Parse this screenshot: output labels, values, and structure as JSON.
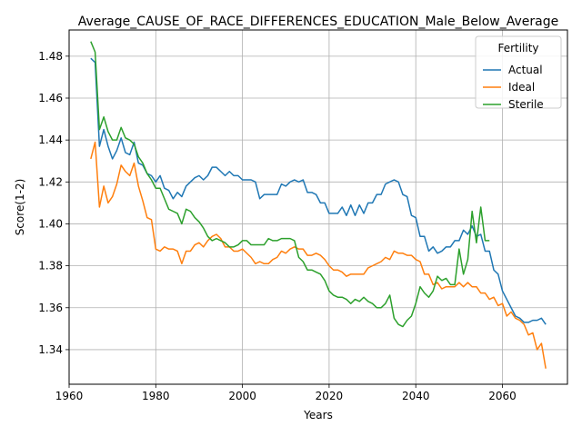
{
  "chart_data": {
    "type": "line",
    "title": "Average_CAUSE_OF_RACE_DIFFERENCES_EDUCATION_Male_Below_Average",
    "xlabel": "Years",
    "ylabel": "Score(1-2)",
    "xlim": [
      1960,
      2075
    ],
    "ylim": [
      1.3235,
      1.4925
    ],
    "xticks": [
      1960,
      1980,
      2000,
      2020,
      2040,
      2060
    ],
    "yticks": [
      1.34,
      1.36,
      1.38,
      1.4,
      1.42,
      1.44,
      1.46,
      1.48
    ],
    "ytick_labels": [
      "1.34",
      "1.36",
      "1.38",
      "1.40",
      "1.42",
      "1.44",
      "1.46",
      "1.48"
    ],
    "grid": true,
    "legend": {
      "title": "Fertility",
      "placement": "top-right"
    },
    "series": [
      {
        "name": "Actual",
        "color": "#1f77b4",
        "x": [
          1965,
          1966,
          1967,
          1968,
          1969,
          1970,
          1971,
          1972,
          1973,
          1974,
          1975,
          1976,
          1977,
          1978,
          1979,
          1980,
          1981,
          1982,
          1983,
          1984,
          1985,
          1986,
          1987,
          1988,
          1989,
          1990,
          1991,
          1992,
          1993,
          1994,
          1995,
          1996,
          1997,
          1998,
          1999,
          2000,
          2001,
          2002,
          2003,
          2004,
          2005,
          2006,
          2007,
          2008,
          2009,
          2010,
          2011,
          2012,
          2013,
          2014,
          2015,
          2016,
          2017,
          2018,
          2019,
          2020,
          2021,
          2022,
          2023,
          2024,
          2025,
          2026,
          2027,
          2028,
          2029,
          2030,
          2031,
          2032,
          2033,
          2034,
          2035,
          2036,
          2037,
          2038,
          2039,
          2040,
          2041,
          2042,
          2043,
          2044,
          2045,
          2046,
          2047,
          2048,
          2049,
          2050,
          2051,
          2052,
          2053,
          2054,
          2055,
          2056,
          2057,
          2058,
          2059,
          2060,
          2061,
          2062,
          2063,
          2064,
          2065,
          2066,
          2067,
          2068,
          2069,
          2070
        ],
        "y": [
          1.479,
          1.477,
          1.437,
          1.445,
          1.437,
          1.431,
          1.435,
          1.441,
          1.434,
          1.433,
          1.439,
          1.429,
          1.428,
          1.424,
          1.423,
          1.42,
          1.423,
          1.417,
          1.416,
          1.412,
          1.415,
          1.413,
          1.418,
          1.42,
          1.422,
          1.423,
          1.421,
          1.423,
          1.427,
          1.427,
          1.425,
          1.423,
          1.425,
          1.423,
          1.423,
          1.421,
          1.421,
          1.421,
          1.42,
          1.412,
          1.414,
          1.414,
          1.414,
          1.414,
          1.419,
          1.418,
          1.42,
          1.421,
          1.42,
          1.421,
          1.415,
          1.415,
          1.414,
          1.41,
          1.41,
          1.405,
          1.405,
          1.405,
          1.408,
          1.404,
          1.409,
          1.404,
          1.409,
          1.405,
          1.41,
          1.41,
          1.414,
          1.414,
          1.419,
          1.42,
          1.421,
          1.42,
          1.414,
          1.413,
          1.404,
          1.403,
          1.394,
          1.394,
          1.387,
          1.389,
          1.386,
          1.387,
          1.389,
          1.389,
          1.392,
          1.392,
          1.397,
          1.395,
          1.399,
          1.394,
          1.395,
          1.387,
          1.387,
          1.378,
          1.376,
          1.368,
          1.364,
          1.36,
          1.356,
          1.355,
          1.353,
          1.353,
          1.354,
          1.354,
          1.355,
          1.352
        ]
      },
      {
        "name": "Ideal",
        "color": "#ff7f0e",
        "x": [
          1965,
          1966,
          1967,
          1968,
          1969,
          1970,
          1971,
          1972,
          1973,
          1974,
          1975,
          1976,
          1977,
          1978,
          1979,
          1980,
          1981,
          1982,
          1983,
          1984,
          1985,
          1986,
          1987,
          1988,
          1989,
          1990,
          1991,
          1992,
          1993,
          1994,
          1995,
          1996,
          1997,
          1998,
          1999,
          2000,
          2001,
          2002,
          2003,
          2004,
          2005,
          2006,
          2007,
          2008,
          2009,
          2010,
          2011,
          2012,
          2013,
          2014,
          2015,
          2016,
          2017,
          2018,
          2019,
          2020,
          2021,
          2022,
          2023,
          2024,
          2025,
          2026,
          2027,
          2028,
          2029,
          2030,
          2031,
          2032,
          2033,
          2034,
          2035,
          2036,
          2037,
          2038,
          2039,
          2040,
          2041,
          2042,
          2043,
          2044,
          2045,
          2046,
          2047,
          2048,
          2049,
          2050,
          2051,
          2052,
          2053,
          2054,
          2055,
          2056,
          2057,
          2058,
          2059,
          2060,
          2061,
          2062,
          2063,
          2064,
          2065,
          2066,
          2067,
          2068,
          2069,
          2070
        ],
        "y": [
          1.431,
          1.439,
          1.408,
          1.418,
          1.41,
          1.413,
          1.419,
          1.428,
          1.425,
          1.423,
          1.429,
          1.418,
          1.411,
          1.403,
          1.402,
          1.388,
          1.387,
          1.389,
          1.388,
          1.388,
          1.387,
          1.381,
          1.387,
          1.387,
          1.39,
          1.391,
          1.389,
          1.392,
          1.394,
          1.395,
          1.393,
          1.389,
          1.389,
          1.387,
          1.387,
          1.388,
          1.386,
          1.384,
          1.381,
          1.382,
          1.381,
          1.381,
          1.383,
          1.384,
          1.387,
          1.386,
          1.388,
          1.389,
          1.388,
          1.388,
          1.385,
          1.385,
          1.386,
          1.385,
          1.383,
          1.38,
          1.378,
          1.378,
          1.377,
          1.375,
          1.376,
          1.376,
          1.376,
          1.376,
          1.379,
          1.38,
          1.381,
          1.382,
          1.384,
          1.383,
          1.387,
          1.386,
          1.386,
          1.385,
          1.385,
          1.383,
          1.382,
          1.376,
          1.376,
          1.371,
          1.372,
          1.369,
          1.37,
          1.37,
          1.37,
          1.372,
          1.37,
          1.372,
          1.37,
          1.37,
          1.367,
          1.367,
          1.364,
          1.365,
          1.361,
          1.362,
          1.356,
          1.358,
          1.355,
          1.354,
          1.352,
          1.347,
          1.348,
          1.34,
          1.343,
          1.331
        ]
      },
      {
        "name": "Sterile",
        "color": "#2ca02c",
        "x": [
          1965,
          1966,
          1967,
          1968,
          1969,
          1970,
          1971,
          1972,
          1973,
          1974,
          1975,
          1976,
          1977,
          1978,
          1979,
          1980,
          1981,
          1982,
          1983,
          1984,
          1985,
          1986,
          1987,
          1988,
          1989,
          1990,
          1991,
          1992,
          1993,
          1994,
          1995,
          1996,
          1997,
          1998,
          1999,
          2000,
          2001,
          2002,
          2003,
          2004,
          2005,
          2006,
          2007,
          2008,
          2009,
          2010,
          2011,
          2012,
          2013,
          2014,
          2015,
          2016,
          2017,
          2018,
          2019,
          2020,
          2021,
          2022,
          2023,
          2024,
          2025,
          2026,
          2027,
          2028,
          2029,
          2030,
          2031,
          2032,
          2033,
          2034,
          2035,
          2036,
          2037,
          2038,
          2039,
          2040,
          2041,
          2042,
          2043,
          2044,
          2045,
          2046,
          2047,
          2048,
          2049,
          2050,
          2051,
          2052,
          2053,
          2054,
          2055,
          2056,
          2057
        ],
        "y": [
          1.487,
          1.482,
          1.445,
          1.451,
          1.444,
          1.44,
          1.44,
          1.446,
          1.441,
          1.44,
          1.438,
          1.432,
          1.429,
          1.424,
          1.421,
          1.417,
          1.417,
          1.412,
          1.407,
          1.406,
          1.405,
          1.4,
          1.407,
          1.406,
          1.403,
          1.401,
          1.398,
          1.394,
          1.392,
          1.393,
          1.392,
          1.391,
          1.389,
          1.389,
          1.39,
          1.392,
          1.392,
          1.39,
          1.39,
          1.39,
          1.39,
          1.393,
          1.392,
          1.392,
          1.393,
          1.393,
          1.393,
          1.392,
          1.384,
          1.382,
          1.378,
          1.378,
          1.377,
          1.376,
          1.373,
          1.368,
          1.366,
          1.365,
          1.365,
          1.364,
          1.362,
          1.364,
          1.363,
          1.365,
          1.363,
          1.362,
          1.36,
          1.36,
          1.362,
          1.366,
          1.355,
          1.352,
          1.351,
          1.354,
          1.356,
          1.362,
          1.37,
          1.367,
          1.365,
          1.368,
          1.375,
          1.373,
          1.374,
          1.371,
          1.371,
          1.388,
          1.376,
          1.383,
          1.406,
          1.391,
          1.408,
          1.392,
          1.392
        ]
      }
    ]
  }
}
